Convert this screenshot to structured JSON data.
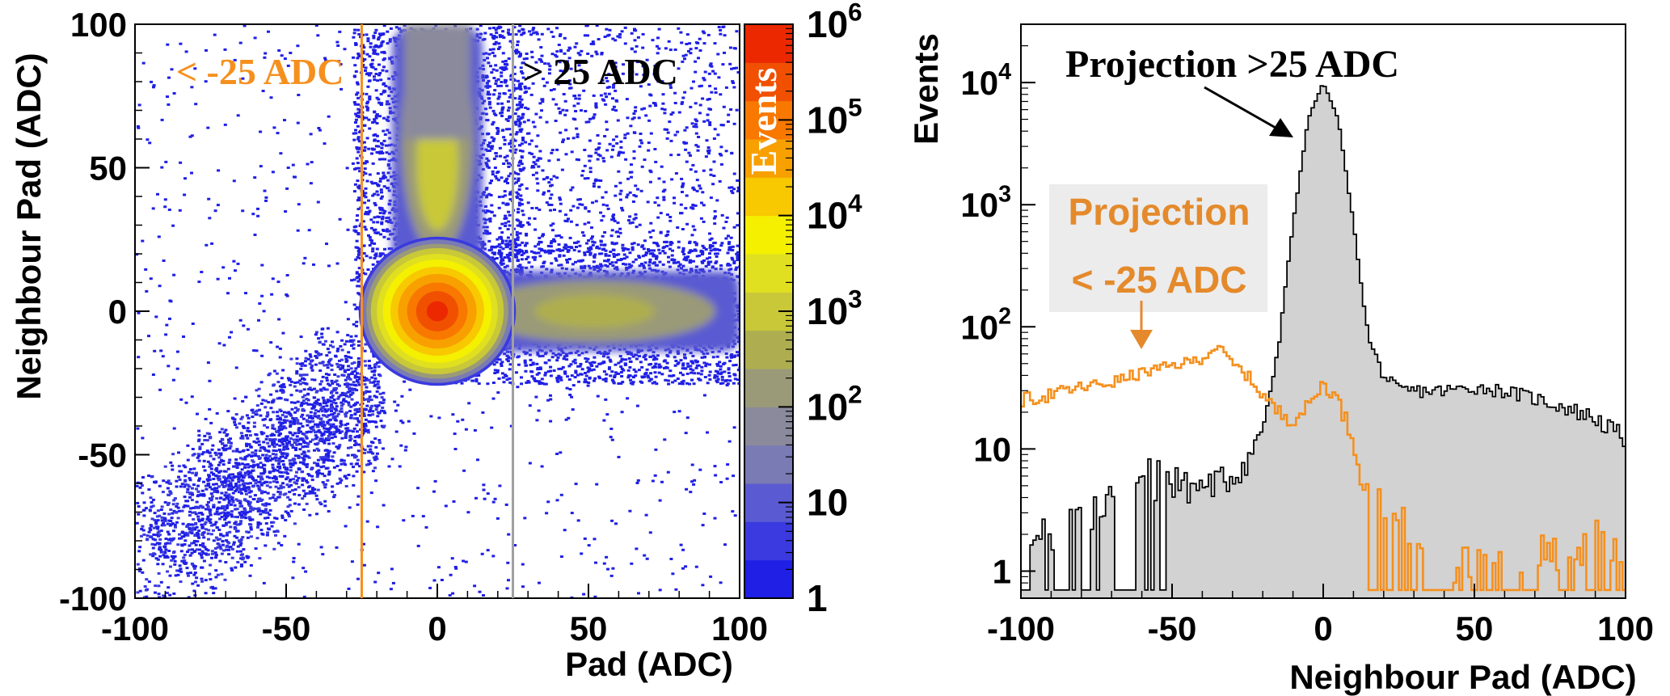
{
  "chart_data": [
    {
      "type": "heatmap",
      "xlabel": "Pad (ADC)",
      "ylabel": "Neighbour Pad (ADC)",
      "xlim": [
        -100,
        100
      ],
      "ylim": [
        -100,
        100
      ],
      "xticks": [
        "-100",
        "-50",
        "0",
        "50",
        "100"
      ],
      "yticks": [
        "-100",
        "-50",
        "0",
        "50",
        "100"
      ],
      "colorbar": {
        "title": "Events",
        "scale": "log",
        "range": [
          1,
          1000000
        ],
        "tick_labels": [
          {
            "base": "1",
            "exp": ""
          },
          {
            "base": "10",
            "exp": ""
          },
          {
            "base": "10",
            "exp": "2"
          },
          {
            "base": "10",
            "exp": "3"
          },
          {
            "base": "10",
            "exp": "4"
          },
          {
            "base": "10",
            "exp": "5"
          },
          {
            "base": "10",
            "exp": "6"
          }
        ],
        "palette": [
          "#1f1fe6",
          "#3a3ae0",
          "#5a5ad2",
          "#7a7ab4",
          "#8a8a9c",
          "#9a9a78",
          "#aeae50",
          "#c8c838",
          "#e0e020",
          "#f4f000",
          "#f8c800",
          "#f8a000",
          "#f87800",
          "#f05000",
          "#ec2800"
        ]
      },
      "cut_lines": [
        {
          "x": -25,
          "label": "< -25 ADC",
          "color": "#f5901e"
        },
        {
          "x": 25,
          "label": "> 25 ADC",
          "color": "#a0a0a0"
        }
      ],
      "features": [
        {
          "name": "core",
          "x_center": 0,
          "y_center": 0,
          "peak_events": 1000000
        },
        {
          "name": "vertical band",
          "x_center": 0,
          "y_range": [
            10,
            100
          ],
          "peak_events": 1000
        },
        {
          "name": "horizontal band",
          "y_center": 0,
          "x_range": [
            10,
            100
          ],
          "peak_events": 1000
        },
        {
          "name": "diagonal tail",
          "x_range": [
            -100,
            -25
          ],
          "y_range": [
            -100,
            -25
          ],
          "peak_events": 10
        }
      ]
    },
    {
      "type": "line",
      "xlabel": "Neighbour Pad (ADC)",
      "ylabel": "Events",
      "xlim": [
        -100,
        100
      ],
      "ylim": [
        0.6,
        30000
      ],
      "yscale": "log",
      "xticks": [
        "-100",
        "-50",
        "0",
        "50",
        "100"
      ],
      "yticks": [
        {
          "base": "1",
          "exp": ""
        },
        {
          "base": "10",
          "exp": ""
        },
        {
          "base": "10",
          "exp": "2"
        },
        {
          "base": "10",
          "exp": "3"
        },
        {
          "base": "10",
          "exp": "4"
        }
      ],
      "series": [
        {
          "name": "Projection >25 ADC",
          "color": "#000000",
          "fill": "#d2d2d2",
          "x": [
            -100,
            -90,
            -80,
            -70,
            -60,
            -50,
            -40,
            -30,
            -25,
            -20,
            -15,
            -10,
            -5,
            0,
            5,
            10,
            15,
            20,
            25,
            30,
            40,
            50,
            60,
            70,
            80,
            90,
            100
          ],
          "y": [
            1,
            1.5,
            2,
            3,
            4,
            5,
            5,
            6,
            8,
            15,
            60,
            700,
            5000,
            10000,
            5000,
            700,
            80,
            40,
            30,
            30,
            30,
            32,
            30,
            26,
            22,
            18,
            12
          ]
        },
        {
          "name": "Projection < -25 ADC",
          "color": "#f5901e",
          "x": [
            -100,
            -90,
            -80,
            -70,
            -60,
            -50,
            -40,
            -35,
            -30,
            -25,
            -20,
            -15,
            -10,
            -5,
            0,
            5,
            10,
            15,
            20,
            30,
            40,
            50,
            60,
            70,
            80,
            90,
            100
          ],
          "y": [
            25,
            28,
            32,
            35,
            42,
            48,
            55,
            70,
            50,
            40,
            28,
            20,
            18,
            22,
            35,
            25,
            12,
            4,
            2,
            1.5,
            1,
            1,
            1,
            1,
            1,
            1.5,
            1
          ]
        }
      ],
      "annotations": [
        {
          "text": "Projection >25 ADC",
          "color": "#000000"
        },
        {
          "text": "Projection",
          "text2": "< -25 ADC",
          "color": "#e48a2c"
        }
      ]
    }
  ]
}
